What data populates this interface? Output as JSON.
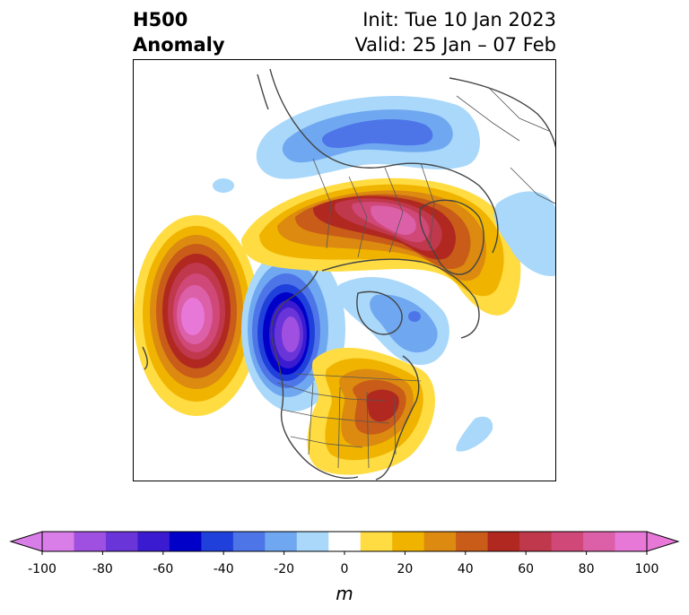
{
  "header": {
    "field": "H500",
    "field_sub": "Anomaly",
    "init": "Init: Tue 10 Jan 2023",
    "valid": "Valid: 25 Jan – 07 Feb"
  },
  "map": {
    "projection": "polar stereographic, North America / Arctic",
    "anomalies": [
      {
        "region": "North Pacific",
        "sign": "positive",
        "peak": 100
      },
      {
        "region": "Western North America / BC coast",
        "sign": "negative",
        "peak": -100
      },
      {
        "region": "Greenland / Baffin Bay",
        "sign": "positive",
        "peak": 100
      },
      {
        "region": "Eastern United States",
        "sign": "positive",
        "peak": 60
      },
      {
        "region": "Northern Eurasia / Siberia",
        "sign": "negative",
        "peak": -40
      },
      {
        "region": "Central Canada",
        "sign": "negative",
        "peak": -30
      }
    ]
  },
  "colorbar": {
    "unit": "m",
    "min": -100,
    "max": 100,
    "extend": "both",
    "ticks": [
      "-100",
      "-80",
      "-60",
      "-40",
      "-20",
      "0",
      "20",
      "40",
      "60",
      "80",
      "100"
    ],
    "levels": [
      -100,
      -90,
      -80,
      -70,
      -60,
      -50,
      -40,
      -30,
      -20,
      -10,
      10,
      20,
      30,
      40,
      50,
      60,
      70,
      80,
      90,
      100
    ],
    "colors": [
      "#d97ee8",
      "#a050e0",
      "#6a35d8",
      "#3a1bd0",
      "#0000c8",
      "#2040dc",
      "#4d75e8",
      "#6fa8f0",
      "#a9d8fa",
      "#ffffff",
      "#ffdc42",
      "#f0b400",
      "#dc8a10",
      "#c85c18",
      "#b02820",
      "#c0384c",
      "#d04878",
      "#dc60a8",
      "#e878d8"
    ],
    "extend_min_color": "#d97ee8",
    "extend_max_color": "#e878d8"
  }
}
